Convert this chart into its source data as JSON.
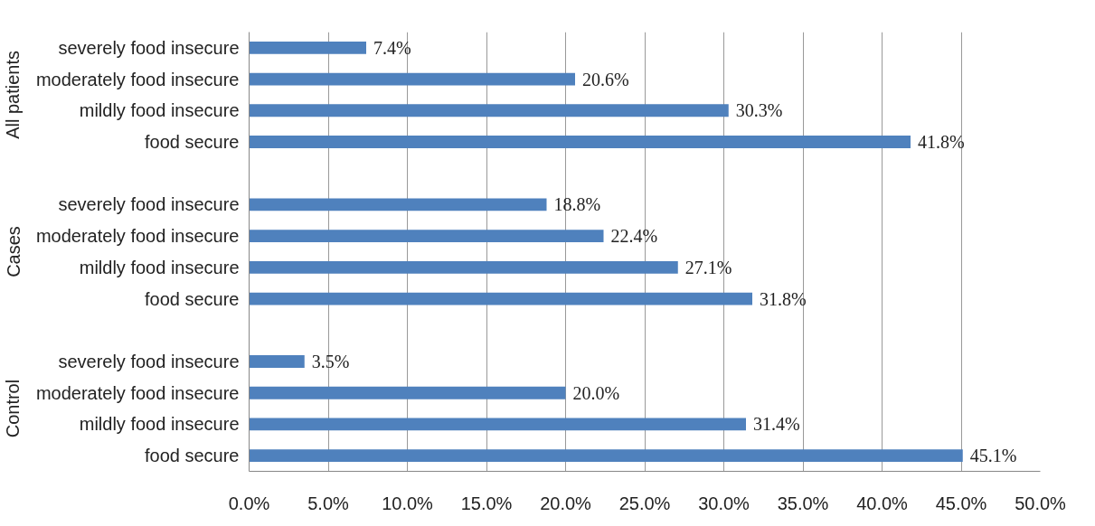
{
  "chart_data": {
    "type": "bar",
    "orientation": "horizontal",
    "categories": [
      "severely food insecure",
      "moderately food insecure",
      "mildly food insecure",
      "food secure",
      null,
      "severely food insecure",
      "moderately food insecure",
      "mildly food insecure",
      "food secure",
      null,
      "severely food insecure",
      "moderately food insecure",
      "mildly food insecure",
      "food secure"
    ],
    "values": [
      7.4,
      20.6,
      30.3,
      41.8,
      null,
      18.8,
      22.4,
      27.1,
      31.8,
      null,
      3.5,
      20.0,
      31.4,
      45.1
    ],
    "value_labels": [
      "7.4%",
      "20.6%",
      "30.3%",
      "41.8%",
      null,
      "18.8%",
      "22.4%",
      "27.1%",
      "31.8%",
      null,
      "3.5%",
      "20.0%",
      "31.4%",
      "45.1%"
    ],
    "color": "#4f81bd",
    "annotations": [
      "All patients",
      "Cases",
      "Control"
    ],
    "xlim": [
      0,
      50
    ],
    "xticks": [
      {
        "value": 0,
        "label": "0.0%"
      },
      {
        "value": 5,
        "label": "5.0%"
      },
      {
        "value": 10,
        "label": "10.0%"
      },
      {
        "value": 15,
        "label": "15.0%"
      },
      {
        "value": 20,
        "label": "20.0%"
      },
      {
        "value": 25,
        "label": "25.0%"
      },
      {
        "value": 30,
        "label": "30.0%"
      },
      {
        "value": 35,
        "label": "35.0%"
      },
      {
        "value": 40,
        "label": "40.0%"
      },
      {
        "value": 45,
        "label": "45.0%"
      },
      {
        "value": 50,
        "label": "50.0%"
      }
    ],
    "grid": "x"
  }
}
